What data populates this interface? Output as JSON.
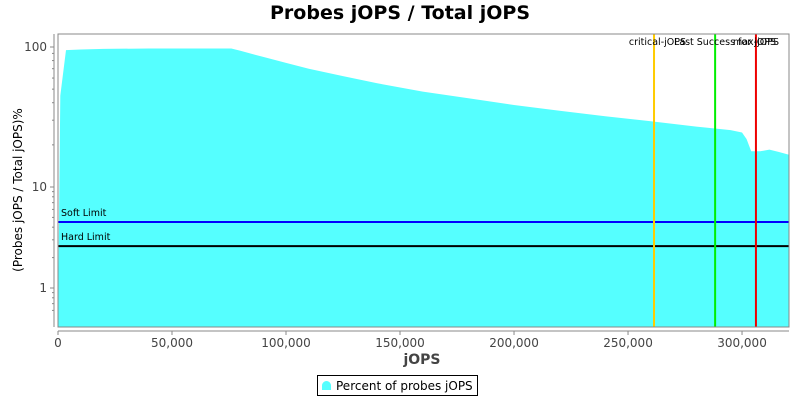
{
  "chart_data": {
    "type": "area",
    "title": "Probes jOPS / Total jOPS",
    "xlabel": "jOPS",
    "ylabel": "(Probes jOPS / Total jOPS)%",
    "xlim": [
      0,
      320600
    ],
    "ylim": [
      0.5,
      130
    ],
    "yscale": "log",
    "x_ticks": [
      "0",
      "50,000",
      "100,000",
      "150,000",
      "200,000",
      "250,000",
      "300,000"
    ],
    "y_ticks": [
      "1",
      "10",
      "100"
    ],
    "grid": false,
    "legend_position": "bottom",
    "series": [
      {
        "name": "Percent of probes jOPS",
        "color": "#55ffff",
        "x": [
          0,
          1000,
          3500,
          10000,
          20000,
          40000,
          60000,
          76000,
          80000,
          90000,
          100000,
          110000,
          125000,
          140000,
          160000,
          180000,
          200000,
          220000,
          240000,
          260000,
          280000,
          295000,
          300000,
          302000,
          304000,
          308000,
          312000,
          316000,
          320600
        ],
        "values": [
          0.5,
          45,
          95,
          96,
          97,
          97.5,
          97.5,
          97.5,
          94,
          85,
          77,
          70,
          62,
          55,
          48,
          43,
          38.5,
          35,
          32,
          29.5,
          27,
          25.5,
          24.5,
          22,
          18,
          18,
          18.5,
          17.8,
          17
        ]
      }
    ],
    "horizontal_markers": [
      {
        "label": "Soft Limit",
        "value": 4.5,
        "color": "#0000ff"
      },
      {
        "label": "Hard Limit",
        "value": 2.6,
        "color": "#000000"
      }
    ],
    "vertical_markers": [
      {
        "label": "critical-jOPS",
        "value": 261400,
        "color": "#ffcc00"
      },
      {
        "label": "Last Success for jOPS",
        "value": 288200,
        "color": "#00ee00"
      },
      {
        "label": "max-jOPS",
        "value": 306100,
        "color": "#ee0000"
      }
    ]
  },
  "legend": {
    "items": [
      {
        "label": "Percent of probes jOPS",
        "color": "#55ffff"
      }
    ]
  }
}
